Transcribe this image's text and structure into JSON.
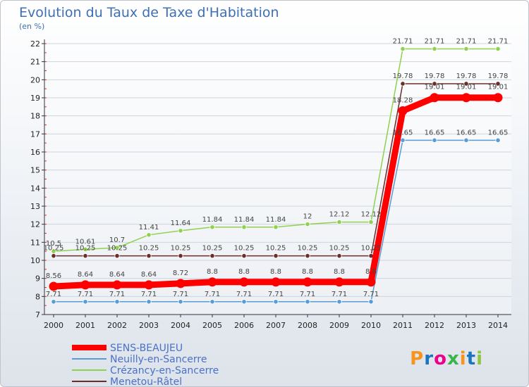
{
  "chart_data": {
    "type": "line",
    "title": "Evolution du Taux de Taxe d'Habitation",
    "ylabel": "(en %)",
    "xlabel": "",
    "ylim": [
      7,
      22
    ],
    "yticks": [
      7,
      8,
      9,
      10,
      11,
      12,
      13,
      14,
      15,
      16,
      17,
      18,
      19,
      20,
      21,
      22
    ],
    "x": [
      "2000",
      "2001",
      "2002",
      "2003",
      "2004",
      "2005",
      "2006",
      "2007",
      "2008",
      "2009",
      "2010",
      "2011",
      "2012",
      "2013",
      "2014"
    ],
    "legend_position": "bottom-left",
    "series": [
      {
        "name": "SENS-BEAUJEU",
        "color": "#ff0000",
        "values": [
          8.56,
          8.64,
          8.64,
          8.64,
          8.72,
          8.8,
          8.8,
          8.8,
          8.8,
          8.8,
          8.8,
          18.28,
          19.01,
          19.01,
          19.01
        ],
        "labels": [
          "8.56",
          "8.64",
          "8.64",
          "8.64",
          "8.72",
          "8.8",
          "8.8",
          "8.8",
          "8.8",
          "8.8",
          "8.8",
          "18.28",
          "19.01",
          "19.01",
          "19.01"
        ]
      },
      {
        "name": "Neuilly-en-Sancerre",
        "color": "#5b9bd5",
        "values": [
          7.71,
          7.71,
          7.71,
          7.71,
          7.71,
          7.71,
          7.71,
          7.71,
          7.71,
          7.71,
          7.71,
          16.65,
          16.65,
          16.65,
          16.65
        ],
        "labels": [
          "7.71",
          "7.71",
          "7.71",
          "7.71",
          "7.71",
          "7.71",
          "7.71",
          "7.71",
          "7.71",
          "7.71",
          "7.71",
          "16.65",
          "16.65",
          "16.65",
          "16.65"
        ]
      },
      {
        "name": "Crézancy-en-Sancerre",
        "color": "#8fd14f",
        "values": [
          10.5,
          10.61,
          10.7,
          11.41,
          11.64,
          11.84,
          11.84,
          11.84,
          12,
          12.12,
          12.12,
          21.71,
          21.71,
          21.71,
          21.71
        ],
        "labels": [
          "10.5",
          "10.61",
          "10.7",
          "11.41",
          "11.64",
          "11.84",
          "11.84",
          "11.84",
          "12",
          "12.12",
          "12.12",
          "21.71",
          "21.71",
          "21.71",
          "21.71"
        ]
      },
      {
        "name": "Menetou-Râtel",
        "color": "#6b2c2c",
        "values": [
          10.25,
          10.25,
          10.25,
          10.25,
          10.25,
          10.25,
          10.25,
          10.25,
          10.25,
          10.25,
          10.25,
          19.78,
          19.78,
          19.78,
          19.78
        ],
        "labels": [
          "10.25",
          "10.25",
          "10.25",
          "10.25",
          "10.25",
          "10.25",
          "10.25",
          "10.25",
          "10.25",
          "10.25",
          "10.25",
          "19.78",
          "19.78",
          "19.78",
          "19.78"
        ]
      }
    ]
  },
  "logo": {
    "text": "Proxiti",
    "colors": [
      "#f7941d",
      "#1c75bc",
      "#ec008c",
      "#39b54a",
      "#f7941d",
      "#1c75bc",
      "#8dc63f"
    ]
  }
}
